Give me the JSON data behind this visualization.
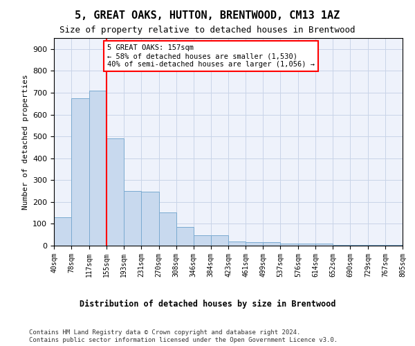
{
  "title": "5, GREAT OAKS, HUTTON, BRENTWOOD, CM13 1AZ",
  "subtitle": "Size of property relative to detached houses in Brentwood",
  "xlabel": "Distribution of detached houses by size in Brentwood",
  "ylabel": "Number of detached properties",
  "bar_color": "#c8d9ee",
  "bar_edge_color": "#7aaad0",
  "grid_color": "#c8d4e8",
  "background_color": "#eef2fb",
  "property_line_x": 155,
  "property_line_color": "red",
  "annotation_text": "5 GREAT OAKS: 157sqm\n← 58% of detached houses are smaller (1,530)\n40% of semi-detached houses are larger (1,056) →",
  "annotation_box_color": "white",
  "annotation_box_edge": "red",
  "footer1": "Contains HM Land Registry data © Crown copyright and database right 2024.",
  "footer2": "Contains public sector information licensed under the Open Government Licence v3.0.",
  "bin_edges": [
    40,
    78,
    117,
    155,
    193,
    231,
    270,
    308,
    346,
    384,
    423,
    461,
    499,
    537,
    576,
    614,
    652,
    690,
    729,
    767,
    805
  ],
  "bar_heights": [
    130,
    675,
    710,
    490,
    250,
    248,
    152,
    85,
    48,
    48,
    20,
    17,
    17,
    10,
    10,
    8,
    4,
    4,
    4,
    4
  ],
  "ylim": [
    0,
    950
  ],
  "yticks": [
    0,
    100,
    200,
    300,
    400,
    500,
    600,
    700,
    800,
    900
  ]
}
